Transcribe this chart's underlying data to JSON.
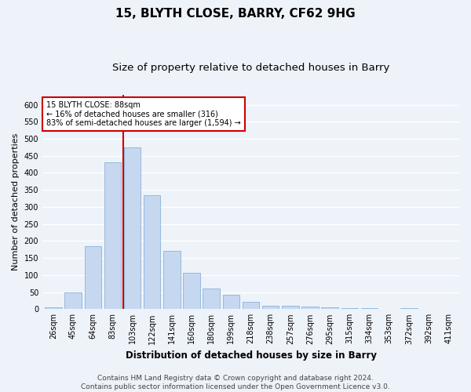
{
  "title1": "15, BLYTH CLOSE, BARRY, CF62 9HG",
  "title2": "Size of property relative to detached houses in Barry",
  "xlabel": "Distribution of detached houses by size in Barry",
  "ylabel": "Number of detached properties",
  "categories": [
    "26sqm",
    "45sqm",
    "64sqm",
    "83sqm",
    "103sqm",
    "122sqm",
    "141sqm",
    "160sqm",
    "180sqm",
    "199sqm",
    "218sqm",
    "238sqm",
    "257sqm",
    "276sqm",
    "295sqm",
    "315sqm",
    "334sqm",
    "353sqm",
    "372sqm",
    "392sqm",
    "411sqm"
  ],
  "values": [
    5,
    50,
    185,
    430,
    475,
    335,
    172,
    107,
    60,
    43,
    22,
    10,
    10,
    8,
    5,
    4,
    2,
    1,
    2,
    1,
    1
  ],
  "bar_color": "#c5d8f0",
  "bar_edge_color": "#8ab4d8",
  "vline_color": "#cc0000",
  "annotation_text": "15 BLYTH CLOSE: 88sqm\n← 16% of detached houses are smaller (316)\n83% of semi-detached houses are larger (1,594) →",
  "annotation_box_color": "#ffffff",
  "annotation_box_edge": "#cc0000",
  "ylim": [
    0,
    630
  ],
  "yticks": [
    0,
    50,
    100,
    150,
    200,
    250,
    300,
    350,
    400,
    450,
    500,
    550,
    600
  ],
  "footer1": "Contains HM Land Registry data © Crown copyright and database right 2024.",
  "footer2": "Contains public sector information licensed under the Open Government Licence v3.0.",
  "background_color": "#eef2f9",
  "grid_color": "#ffffff",
  "title1_fontsize": 11,
  "title2_fontsize": 9.5,
  "ylabel_fontsize": 8,
  "xlabel_fontsize": 8.5,
  "tick_fontsize": 7,
  "footer_fontsize": 6.5,
  "annot_fontsize": 7
}
